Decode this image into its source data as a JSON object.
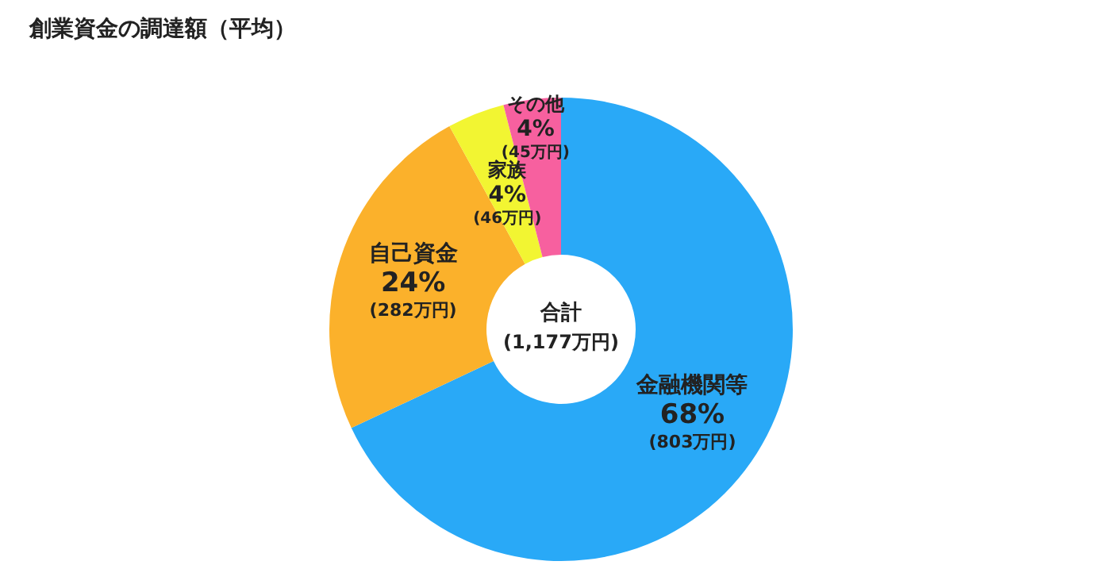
{
  "chart_data": {
    "type": "donut",
    "title": "創業資金の調達額（平均）",
    "categories": [
      "金融機関等",
      "自己資金",
      "家族",
      "その他"
    ],
    "values": [
      68,
      24,
      4,
      4
    ],
    "value_labels": [
      "68%",
      "24%",
      "4%",
      "4%"
    ],
    "colors": [
      "#29a9f7",
      "#fbb12b",
      "#f2f532",
      "#f7609f"
    ],
    "annotations": [
      {
        "text": "(803万円)",
        "x": "金融機関等"
      },
      {
        "text": "(282万円)",
        "x": "自己資金"
      },
      {
        "text": "(46万円)",
        "x": "家族"
      },
      {
        "text": "(45万円)",
        "x": "その他"
      },
      "合計",
      "(1,177万円)"
    ]
  }
}
